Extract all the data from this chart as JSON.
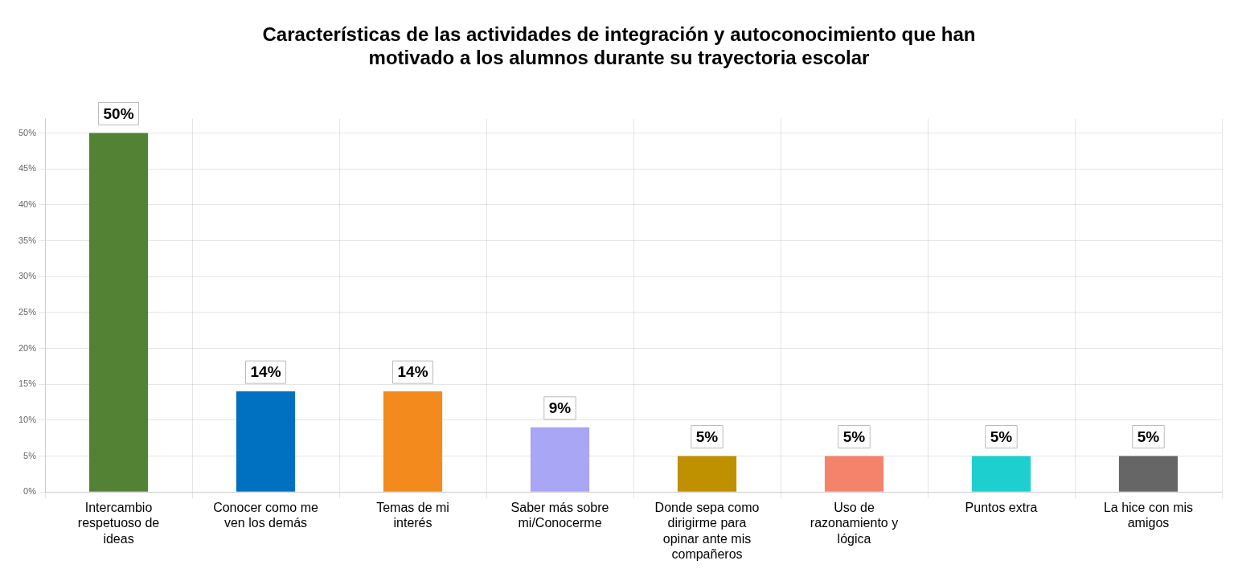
{
  "chart_data": {
    "type": "bar",
    "title": "Características de las actividades de integración y autoconocimiento que han motivado a los alumnos durante su trayectoria escolar",
    "categories": [
      "Intercambio respetuoso de ideas",
      "Conocer como me ven los demás",
      "Temas de mi interés",
      "Saber más sobre mi/Conocerme",
      "Donde sepa como dirigirme para opinar ante mis compañeros",
      "Uso de razonamiento y lógica",
      "Puntos extra",
      "La hice con mis amigos"
    ],
    "values": [
      50,
      14,
      14,
      9,
      5,
      5,
      5,
      5
    ],
    "colors": [
      "#548235",
      "#0070c0",
      "#f28a1e",
      "#a9a6f6",
      "#bf9000",
      "#f4836c",
      "#1ecfcf",
      "#666666"
    ],
    "value_labels": [
      "50%",
      "14%",
      "14%",
      "9%",
      "5%",
      "5%",
      "5%",
      "5%"
    ],
    "ylim": [
      0,
      52
    ],
    "yticks": [
      {
        "value": 0,
        "label": "0%"
      },
      {
        "value": 5,
        "label": "5%"
      },
      {
        "value": 10,
        "label": "10%"
      },
      {
        "value": 15,
        "label": "15%"
      },
      {
        "value": 20,
        "label": "20%"
      },
      {
        "value": 25,
        "label": "25%"
      },
      {
        "value": 30,
        "label": "30%"
      },
      {
        "value": 35,
        "label": "35%"
      },
      {
        "value": 40,
        "label": "40%"
      },
      {
        "value": 45,
        "label": "45%"
      },
      {
        "value": 50,
        "label": "50%"
      }
    ],
    "grid": true,
    "legend": false
  }
}
